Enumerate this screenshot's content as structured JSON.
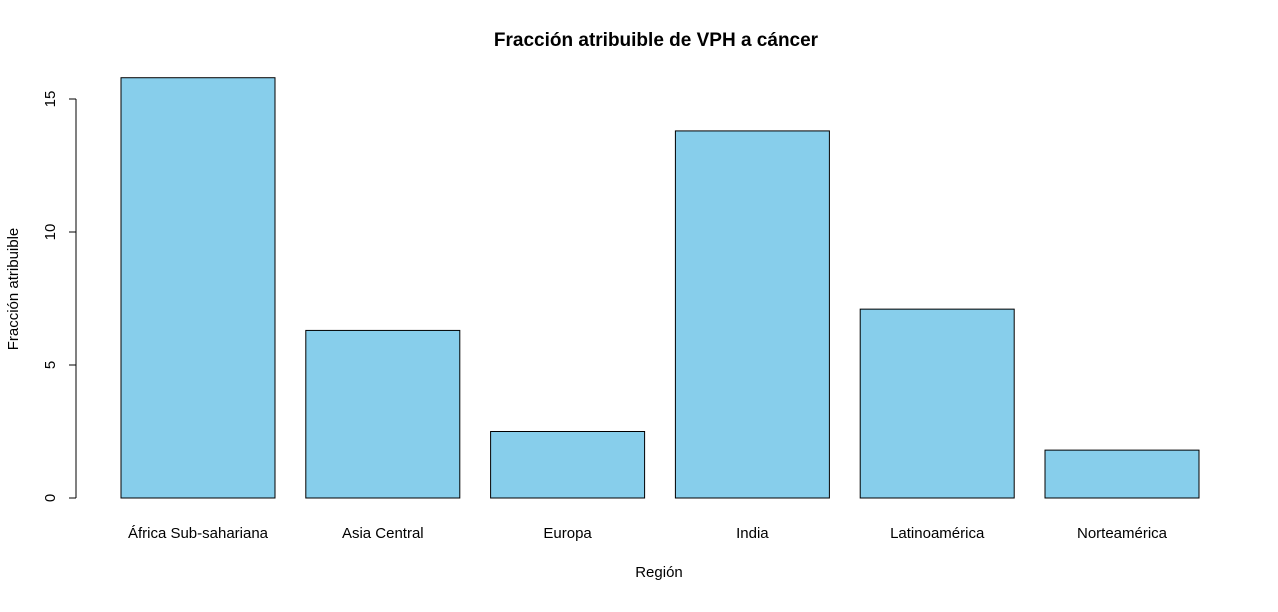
{
  "chart_data": {
    "type": "bar",
    "title": "Fracción atribuible de VPH a cáncer",
    "xlabel": "Región",
    "ylabel": "Fracción atribuible",
    "categories": [
      "África Sub-sahariana",
      "Asia Central",
      "Europa",
      "India",
      "Latinoamérica",
      "Norteamérica"
    ],
    "values": [
      15.8,
      6.3,
      2.5,
      13.8,
      7.1,
      1.8
    ],
    "yticks": [
      0,
      5,
      10,
      15
    ],
    "ylim": [
      0,
      15.8
    ],
    "grid": false,
    "legend": "none",
    "bar_color": "#87CEEB",
    "bar_edge_color": "#000000"
  }
}
